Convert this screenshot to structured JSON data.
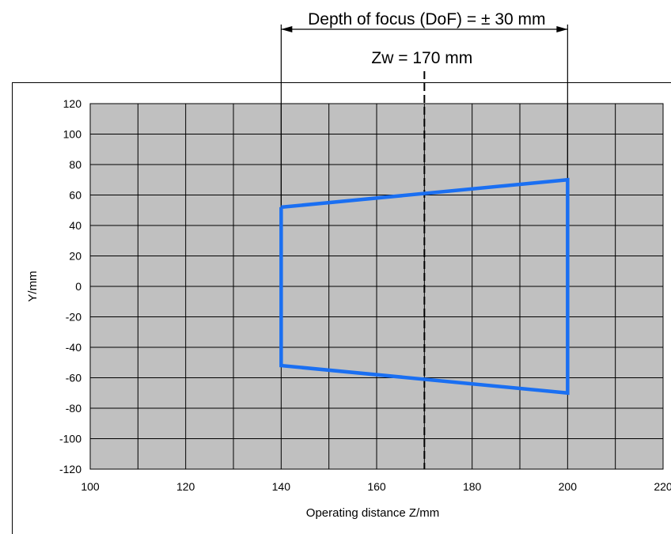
{
  "chart_data": {
    "type": "line",
    "title": "",
    "xlabel": "Operating distance Z/mm",
    "ylabel": "Y/mm",
    "xlim": [
      100,
      220
    ],
    "ylim": [
      -120,
      120
    ],
    "x_ticks": [
      "100",
      "120",
      "140",
      "160",
      "180",
      "200",
      "220"
    ],
    "y_ticks": [
      "120",
      "100",
      "80",
      "60",
      "40",
      "20",
      "0",
      "-20",
      "-40",
      "-60",
      "-80",
      "-100",
      "-120"
    ],
    "x_minor_step": 10,
    "grid": true,
    "series": [
      {
        "color": "#1a6ff2",
        "closed": true,
        "points": [
          [
            140,
            52
          ],
          [
            200,
            70
          ],
          [
            200,
            -70
          ],
          [
            140,
            -52
          ],
          [
            140,
            52
          ]
        ]
      }
    ],
    "annotations": {
      "dof_text": "Depth of focus (DoF) = ± 30 mm",
      "dof_range": [
        140,
        200
      ],
      "zw_text": "Zw = 170 mm",
      "zw_value": 170
    },
    "colors": {
      "plot_bg": "#c0c0c0",
      "grid": "#000000",
      "series": "#1a6ff2"
    }
  }
}
